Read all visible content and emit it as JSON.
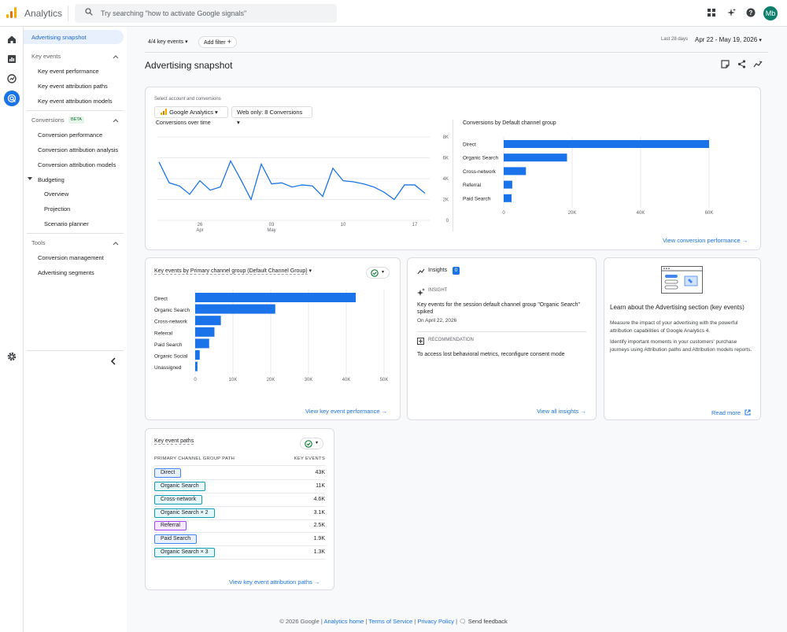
{
  "app": {
    "name": "Analytics",
    "avatar": "Mb"
  },
  "search": {
    "placeholder": "Try searching \"how to activate Google signals\""
  },
  "nav": {
    "active": "Advertising snapshot",
    "key_events_section": "Key events",
    "key_events_items": [
      "Key event performance",
      "Key event attribution paths",
      "Key event attribution models"
    ],
    "conversions_section": "Conversions",
    "beta": "BETA",
    "conversions_items": [
      "Conversion performance",
      "Conversion attribution analysis",
      "Conversion attribution models"
    ],
    "budgeting": "Budgeting",
    "budgeting_items": [
      "Overview",
      "Projection",
      "Scenario planner"
    ],
    "tools_section": "Tools",
    "tools_items": [
      "Conversion management",
      "Advertising segments"
    ]
  },
  "toolbar": {
    "key_events_filter": "4/4 key events",
    "add_filter": "Add filter",
    "date_label": "Last 28 days",
    "date_range": "Apr 22 - May 19, 2026"
  },
  "page_title": "Advertising snapshot",
  "top_card": {
    "select_label": "Select account and conversions",
    "account": "Google Analytics",
    "conversions_select": "Web only: 8 Conversions",
    "line_title": "Conversions over time",
    "bar_title": "Conversions by Default channel group",
    "link": "View conversion performance"
  },
  "key_events_card": {
    "title": "Key events by Primary channel group (Default Channel Group)",
    "link": "View key event performance"
  },
  "insights_card": {
    "title": "Insights",
    "count": "0",
    "insight_label": "INSIGHT",
    "insight_text_1": "Key events for the session default channel group \"Organic Search\"",
    "insight_text_2": "spiked",
    "insight_date": "On April 22, 2026",
    "rec_label": "RECOMMENDATION",
    "rec_text": "To access lost behavioral metrics, reconfigure consent mode",
    "link": "View all insights"
  },
  "learn_card": {
    "title": "Learn about the Advertising section (key events)",
    "p1": "Measure the impact of your advertising with the powerful attribution capabilities of Google Analytics 4.",
    "p2": "Identify important moments in your customers' purchase journeys using Attribution paths and Attribution models reports.",
    "link": "Read more"
  },
  "paths_card": {
    "title": "Key event paths",
    "col1": "PRIMARY CHANNEL GROUP PATH",
    "col2": "KEY EVENTS",
    "rows": [
      {
        "path": "Direct",
        "value": "43K"
      },
      {
        "path": "Organic Search",
        "value": "11K"
      },
      {
        "path": "Cross-network",
        "value": "4.6K"
      },
      {
        "path": "Organic Search × 2",
        "value": "3.1K"
      },
      {
        "path": "Referral",
        "value": "2.5K"
      },
      {
        "path": "Paid Search",
        "value": "1.9K"
      },
      {
        "path": "Organic Search × 3",
        "value": "1.3K"
      }
    ],
    "link": "View key event attribution paths"
  },
  "footer": {
    "copyright": "© 2026 Google |",
    "links": [
      "Analytics home",
      "Terms of Service",
      "Privacy Policy"
    ],
    "feedback": "Send feedback"
  },
  "chart_data": [
    {
      "type": "line",
      "title": "Conversions over time",
      "x_ticks": [
        {
          "label": "26",
          "sub": "Apr"
        },
        {
          "label": "03",
          "sub": "May"
        },
        {
          "label": "10",
          "sub": ""
        },
        {
          "label": "17",
          "sub": ""
        }
      ],
      "y_ticks": [
        "8K",
        "6K",
        "4K",
        "2K",
        "0"
      ],
      "ylim": [
        0,
        8000
      ],
      "values": [
        5600,
        3600,
        3300,
        2500,
        3800,
        2900,
        3200,
        5700,
        3900,
        2000,
        5400,
        3500,
        3600,
        3200,
        3400,
        3300,
        2300,
        5000,
        3800,
        3700,
        3500,
        3200,
        2700,
        2000,
        3400,
        3400,
        2600
      ]
    },
    {
      "type": "bar",
      "title": "Conversions by Default channel group",
      "categories": [
        "Direct",
        "Organic Search",
        "Cross-network",
        "Referral",
        "Paid Search"
      ],
      "values": [
        60000,
        18500,
        6500,
        2500,
        2300
      ],
      "x_ticks": [
        "0",
        "20K",
        "40K",
        "60K"
      ],
      "xlim": [
        0,
        60000
      ]
    },
    {
      "type": "bar",
      "title": "Key events by Primary channel group (Default Channel Group)",
      "categories": [
        "Direct",
        "Organic Search",
        "Cross-network",
        "Referral",
        "Paid Search",
        "Organic Social",
        "Unassigned"
      ],
      "values": [
        42500,
        21200,
        6800,
        5100,
        3700,
        1200,
        600
      ],
      "x_ticks": [
        "0",
        "10K",
        "20K",
        "30K",
        "40K",
        "50K"
      ],
      "xlim": [
        0,
        50000
      ]
    }
  ],
  "colors": {
    "accent": "#1a73e8",
    "bar": "#1a73e8"
  }
}
